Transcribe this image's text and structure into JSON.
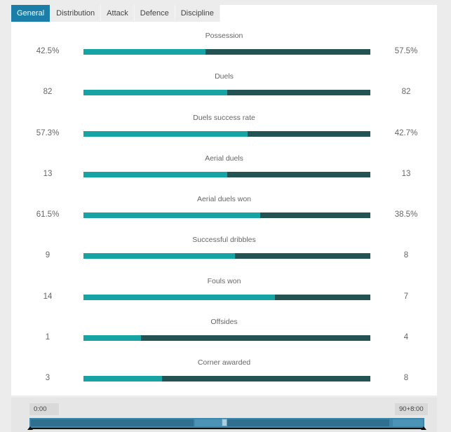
{
  "tabs": [
    {
      "label": "General",
      "active": true
    },
    {
      "label": "Distribution",
      "active": false
    },
    {
      "label": "Attack",
      "active": false
    },
    {
      "label": "Defence",
      "active": false
    },
    {
      "label": "Discipline",
      "active": false
    }
  ],
  "colors": {
    "active_tab": "#1a7ea8",
    "home_bar": "#16a3a3",
    "away_bar": "#245353"
  },
  "stats": [
    {
      "title": "Possession",
      "left": "42.5%",
      "right": "57.5%",
      "left_share": 0.425
    },
    {
      "title": "Duels",
      "left": "82",
      "right": "82",
      "left_share": 0.5
    },
    {
      "title": "Duels success rate",
      "left": "57.3%",
      "right": "42.7%",
      "left_share": 0.573
    },
    {
      "title": "Aerial duels",
      "left": "13",
      "right": "13",
      "left_share": 0.5
    },
    {
      "title": "Aerial duels won",
      "left": "61.5%",
      "right": "38.5%",
      "left_share": 0.615
    },
    {
      "title": "Successful dribbles",
      "left": "9",
      "right": "8",
      "left_share": 0.529
    },
    {
      "title": "Fouls won",
      "left": "14",
      "right": "7",
      "left_share": 0.667
    },
    {
      "title": "Offsides",
      "left": "1",
      "right": "4",
      "left_share": 0.2
    },
    {
      "title": "Corner awarded",
      "left": "3",
      "right": "8",
      "left_share": 0.273
    }
  ],
  "timeline": {
    "start_label": "0:00",
    "end_label": "90+8:00"
  }
}
